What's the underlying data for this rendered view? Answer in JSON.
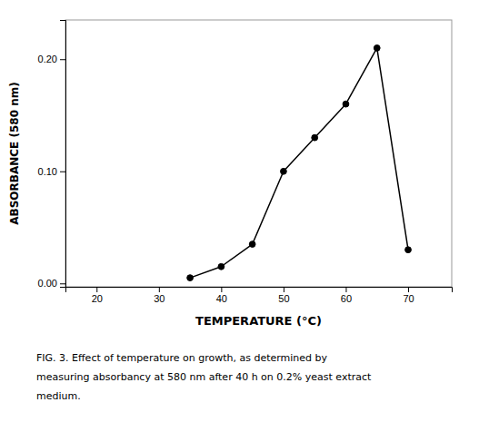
{
  "chart_data": {
    "type": "line",
    "x": [
      35,
      40,
      45,
      50,
      55,
      60,
      65,
      70
    ],
    "values": [
      0.005,
      0.015,
      0.035,
      0.1,
      0.13,
      0.16,
      0.21,
      0.03
    ],
    "xlabel": "TEMPERATURE (°C)",
    "ylabel": "ABSORBANCE (580 nm)",
    "xlim": [
      15,
      77
    ],
    "ylim": [
      -0.003,
      0.235
    ],
    "xticks": [
      20,
      30,
      40,
      50,
      60,
      70
    ],
    "yticks": [
      {
        "value": 0.0,
        "label": "0.00"
      },
      {
        "value": 0.1,
        "label": "0.10"
      },
      {
        "value": 0.2,
        "label": "0.20"
      }
    ],
    "annotations": [
      "FIG. 3.  Effect of temperature on growth, as determined by",
      "measuring absorbancy at 580 nm after 40 h on 0.2% yeast extract",
      "medium."
    ],
    "color": "#000000",
    "marker": "circle",
    "grid": false
  }
}
